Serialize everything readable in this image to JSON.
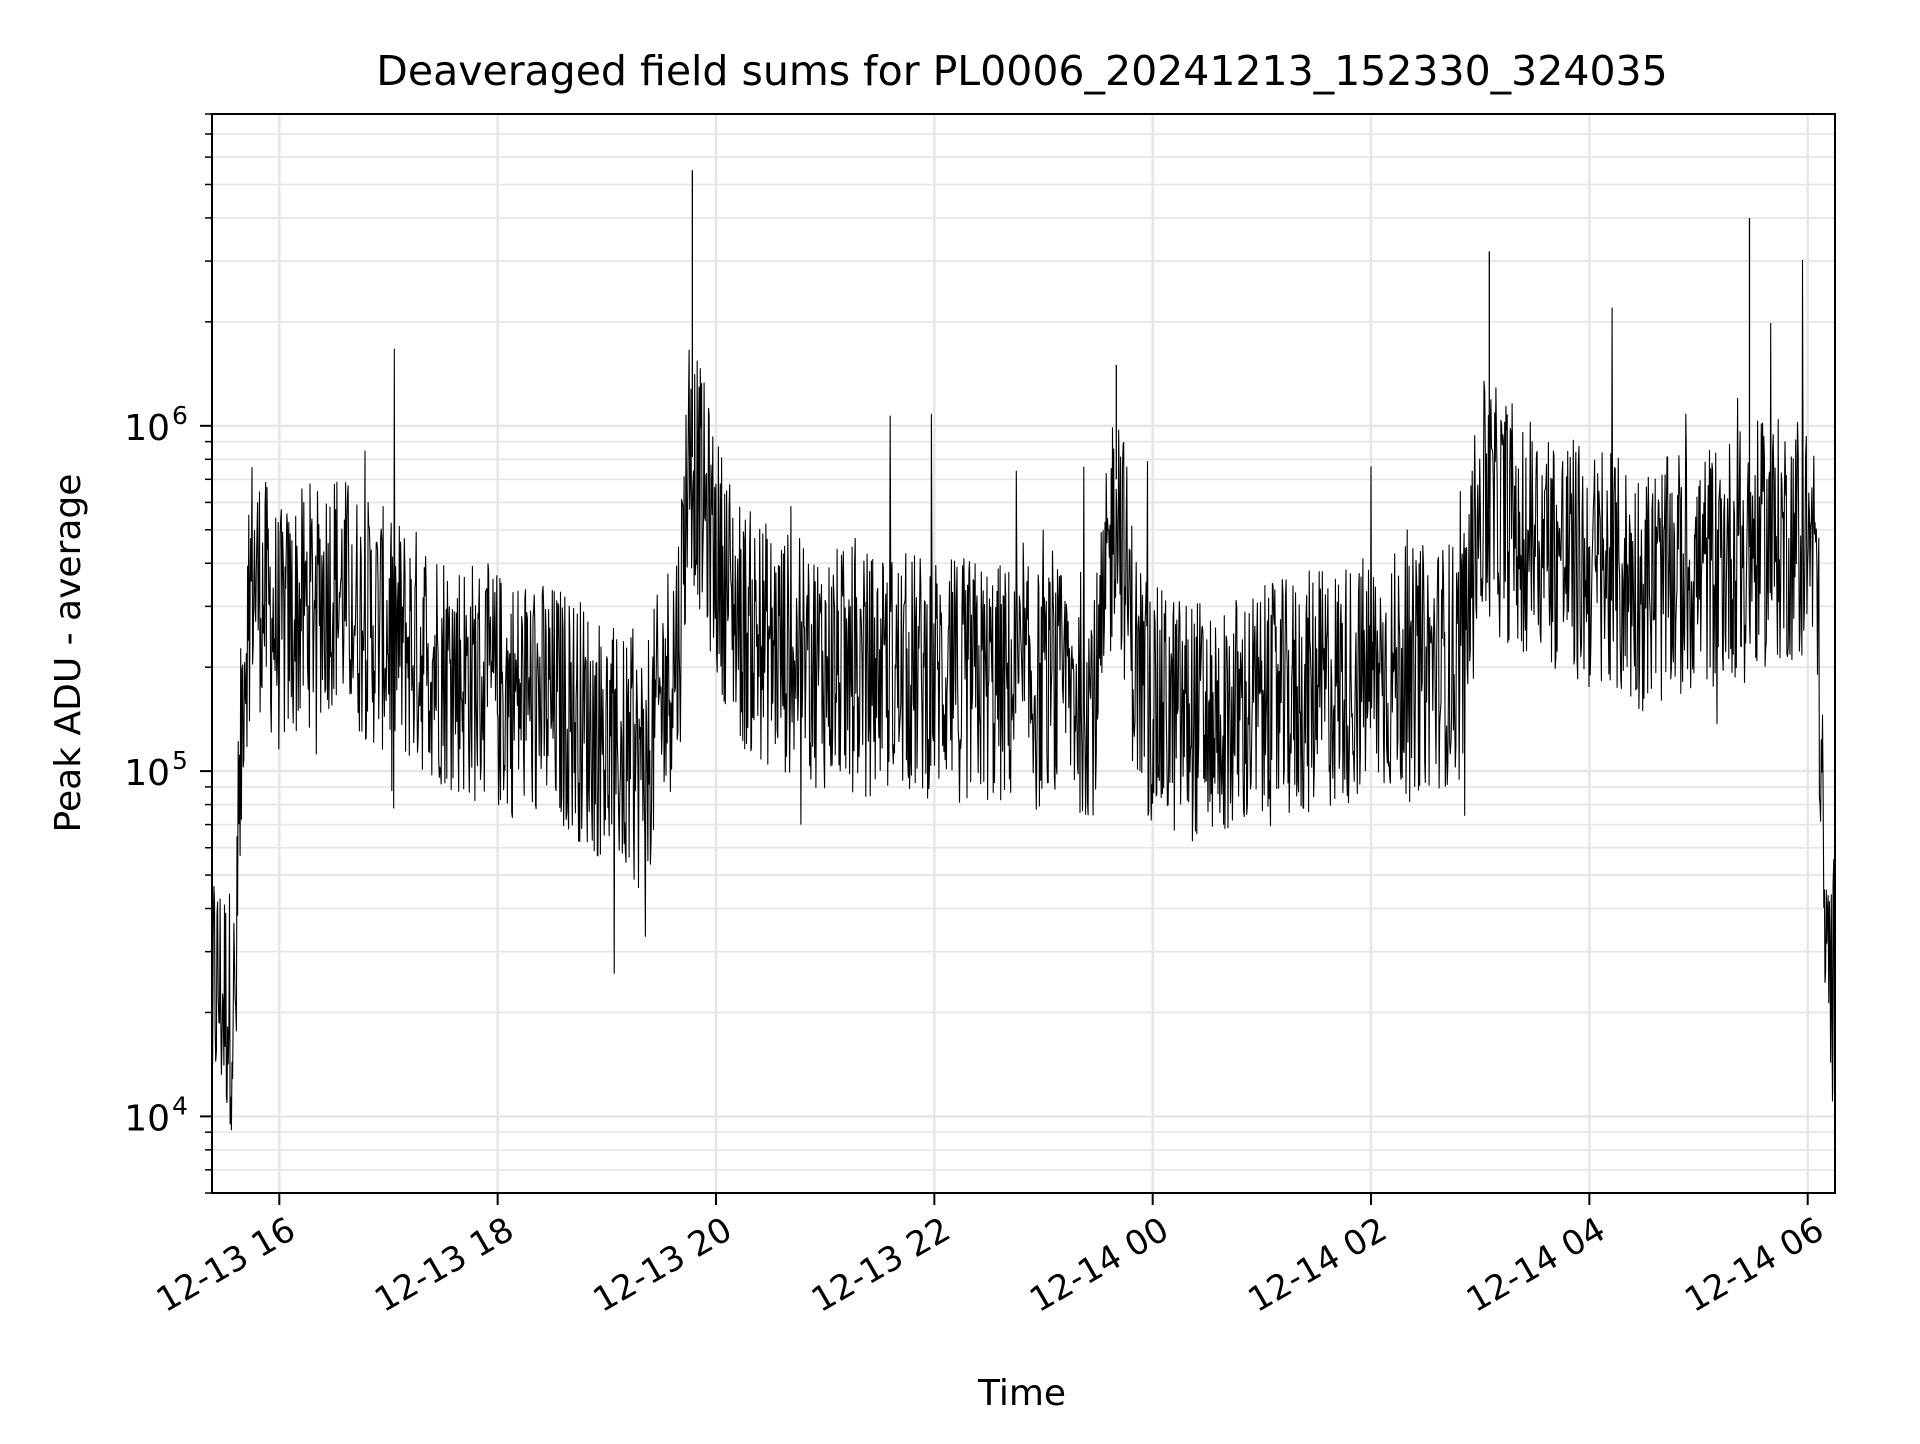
{
  "chart_data": {
    "type": "line",
    "title": "Deaveraged field sums for PL0006_20241213_152330_324035",
    "xlabel": "Time",
    "ylabel": "Peak ADU - average",
    "yscale": "log",
    "ylim": [
      6000,
      8000000
    ],
    "xlim": [
      "2024-12-13 15:23",
      "2024-12-14 06:15"
    ],
    "grid": true,
    "line_color": "#000000",
    "x_tick_labels": [
      "12-13 16",
      "12-13 18",
      "12-13 20",
      "12-13 22",
      "12-14 00",
      "12-14 02",
      "12-14 04",
      "12-14 06"
    ],
    "x_tick_times": [
      "2024-12-13 16:00",
      "2024-12-13 18:00",
      "2024-12-13 20:00",
      "2024-12-13 22:00",
      "2024-12-14 00:00",
      "2024-12-14 02:00",
      "2024-12-14 04:00",
      "2024-12-14 06:00"
    ],
    "y_major_ticks": [
      10000,
      100000,
      1000000
    ],
    "y_tick_labels": [
      {
        "value": 10000,
        "base": "10",
        "exp": "4"
      },
      {
        "value": 100000,
        "base": "10",
        "exp": "5"
      },
      {
        "value": 1000000,
        "base": "10",
        "exp": "6"
      }
    ],
    "series": [
      {
        "x": [
          "2024-12-13 15:23",
          "2024-12-13 15:30",
          "2024-12-13 15:36",
          "2024-12-13 15:40",
          "2024-12-13 15:45",
          "2024-12-13 15:50",
          "2024-12-13 16:00",
          "2024-12-13 16:15",
          "2024-12-13 16:30",
          "2024-12-13 16:45",
          "2024-12-13 17:00",
          "2024-12-13 17:20",
          "2024-12-13 17:40",
          "2024-12-13 18:00",
          "2024-12-13 18:20",
          "2024-12-13 18:40",
          "2024-12-13 19:00",
          "2024-12-13 19:20",
          "2024-12-13 19:40",
          "2024-12-13 19:45",
          "2024-12-13 20:00",
          "2024-12-13 20:15",
          "2024-12-13 20:30",
          "2024-12-13 21:00",
          "2024-12-13 21:30",
          "2024-12-13 22:00",
          "2024-12-13 22:30",
          "2024-12-13 23:00",
          "2024-12-13 23:30",
          "2024-12-13 23:40",
          "2024-12-13 23:50",
          "2024-12-14 00:00",
          "2024-12-14 00:30",
          "2024-12-14 01:00",
          "2024-12-14 01:30",
          "2024-12-14 02:00",
          "2024-12-14 02:30",
          "2024-12-14 02:50",
          "2024-12-14 03:00",
          "2024-12-14 03:30",
          "2024-12-14 04:00",
          "2024-12-14 04:30",
          "2024-12-14 05:00",
          "2024-12-14 05:30",
          "2024-12-14 06:00",
          "2024-12-14 06:05",
          "2024-12-14 06:10",
          "2024-12-14 06:15"
        ],
        "values": [
          25000,
          22000,
          20000,
          200000,
          380000,
          330000,
          250000,
          300000,
          350000,
          280000,
          250000,
          220000,
          190000,
          170000,
          160000,
          150000,
          120000,
          100000,
          250000,
          900000,
          420000,
          260000,
          230000,
          200000,
          190000,
          190000,
          180000,
          170000,
          170000,
          700000,
          210000,
          150000,
          140000,
          150000,
          170000,
          190000,
          200000,
          210000,
          600000,
          480000,
          380000,
          340000,
          380000,
          450000,
          480000,
          400000,
          25000,
          25000
        ]
      }
    ],
    "annotated_peaks": [
      {
        "x": "2024-12-13 19:47",
        "y": 5500000
      },
      {
        "x": "2024-12-14 05:28",
        "y": 4000000
      },
      {
        "x": "2024-12-14 03:05",
        "y": 3200000
      },
      {
        "x": "2024-12-13 23:40",
        "y": 1500000
      }
    ]
  }
}
